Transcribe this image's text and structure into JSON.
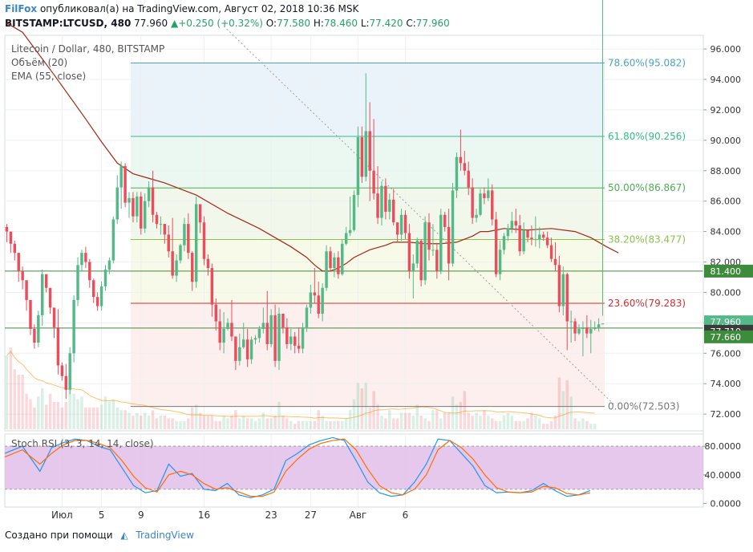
{
  "header": {
    "brand": "FilFox",
    "published_text": "опубликовал(а) на TradingView.com, Август 02, 2018 10:36 MSK",
    "symbol": "BITSTAMP:LTCUSD, 480",
    "last": "77.960",
    "change": "+0.250 (+0.32%)",
    "o_label": "O:",
    "o_value": "77.580",
    "h_label": "H:",
    "h_value": "78.460",
    "l_label": "L:",
    "l_value": "77.420",
    "c_label": "C:",
    "c_value": "77.960"
  },
  "legend": {
    "title": "Litecoin / Dollar, 480, BITSTAMP",
    "volume": "Объём (20)",
    "ema": "EMA (55, close)",
    "stoch": "Stoch RSI (3, 3, 14, 14, close)"
  },
  "footer": {
    "created_with": "Создано при помощи",
    "tradingview": "TradingView"
  },
  "colors": {
    "up": "#53b987",
    "down": "#eb4d5c",
    "ema": "#a52714",
    "hline": "#3c8c3c",
    "stoch_k": "#2196f3",
    "stoch_d": "#ff6d00",
    "stoch_band": "#e1bee7"
  },
  "chart_data": [
    {
      "type": "candlestick",
      "title": "Litecoin / Dollar, 480, BITSTAMP",
      "ylim": [
        70.9,
        96.9
      ],
      "y_ticks": [
        "96.000",
        "94.000",
        "92.000",
        "90.000",
        "88.000",
        "86.000",
        "84.000",
        "82.000",
        "80.000",
        "78.000",
        "76.000",
        "74.000",
        "72.000"
      ],
      "x_ticks": [
        "Июл",
        "5",
        "9",
        "16",
        "23",
        "27",
        "Авг",
        "6"
      ],
      "x_tick_bars": [
        14,
        24,
        34,
        50,
        67,
        77,
        89,
        101
      ],
      "closes": [
        84.0,
        83.2,
        82.6,
        81.4,
        80.8,
        79.5,
        77.6,
        76.7,
        78.5,
        81.2,
        80.3,
        79.0,
        77.7,
        75.2,
        74.5,
        73.6,
        76.0,
        79.5,
        81.8,
        82.6,
        82.0,
        80.8,
        79.7,
        79.1,
        80.4,
        81.5,
        82.1,
        84.8,
        86.9,
        88.3,
        85.9,
        86.2,
        85.0,
        86.3,
        84.2,
        86.0,
        86.9,
        85.1,
        84.5,
        84.5,
        83.8,
        82.7,
        81.1,
        82.1,
        83.1,
        84.5,
        82.6,
        80.7,
        85.8,
        84.6,
        82.2,
        81.6,
        79.2,
        78.1,
        76.7,
        77.6,
        78.0,
        77.1,
        75.5,
        76.4,
        76.9,
        75.6,
        76.9,
        77.0,
        77.6,
        78.0,
        76.6,
        78.5,
        75.5,
        78.6,
        77.7,
        76.6,
        77.1,
        76.5,
        76.3,
        77.7,
        79.0,
        80.0,
        79.8,
        78.6,
        80.3,
        82.7,
        81.6,
        82.3,
        81.2,
        83.2,
        83.9,
        84.1,
        86.4,
        90.2,
        87.6,
        90.6,
        88.0,
        86.5,
        84.9,
        87.0,
        85.3,
        86.1,
        84.6,
        83.8,
        85.1,
        83.9,
        81.4,
        81.9,
        83.4,
        80.8,
        84.6,
        82.8,
        82.8,
        81.4,
        85.1,
        84.3,
        81.9,
        86.7,
        88.9,
        88.5,
        88.0,
        86.9,
        84.9,
        85.1,
        86.5,
        86.2,
        86.7,
        84.8,
        81.2,
        82.8,
        83.7,
        84.2,
        84.7,
        84.4,
        82.7,
        84.1,
        83.6,
        83.5,
        83.5,
        83.8,
        83.6,
        83.1,
        82.2,
        81.8,
        79.1,
        81.2,
        78.1,
        78.1,
        77.3,
        77.6,
        77.7,
        77.3,
        77.6,
        77.7,
        77.9,
        77.96
      ],
      "highs": [
        84.5,
        83.8,
        83.4,
        82.2,
        81.7,
        80.6,
        79.0,
        77.9,
        78.8,
        81.5,
        80.9,
        79.9,
        78.6,
        78.9,
        75.4,
        75.3,
        76.4,
        79.8,
        82.3,
        82.8,
        83.0,
        82.2,
        80.9,
        80.0,
        80.7,
        81.8,
        82.3,
        85.0,
        87.7,
        88.6,
        88.5,
        86.6,
        86.6,
        86.6,
        86.6,
        86.5,
        87.3,
        88.0,
        85.3,
        85.0,
        84.5,
        84.4,
        84.9,
        82.5,
        83.2,
        84.9,
        85.2,
        82.7,
        86.3,
        85.2,
        85.0,
        82.5,
        81.9,
        79.6,
        78.9,
        78.7,
        78.3,
        79.5,
        77.1,
        77.3,
        78.0,
        77.6,
        77.1,
        77.2,
        77.8,
        79.0,
        80.1,
        78.9,
        79.2,
        79.0,
        78.3,
        78.3,
        77.6,
        77.4,
        77.7,
        78.0,
        79.2,
        80.5,
        81.6,
        80.7,
        80.6,
        83.1,
        83.0,
        82.6,
        82.7,
        83.5,
        84.3,
        86.3,
        86.7,
        90.9,
        90.9,
        94.4,
        92.5,
        91.4,
        88.3,
        87.3,
        87.5,
        86.5,
        86.8,
        84.6,
        85.5,
        85.4,
        84.5,
        82.5,
        83.6,
        83.5,
        85.0,
        85.2,
        84.5,
        83.2,
        85.5,
        85.3,
        85.5,
        87.2,
        89.2,
        90.7,
        89.3,
        88.6,
        87.5,
        85.5,
        86.8,
        86.9,
        87.5,
        87.1,
        85.3,
        83.4,
        83.9,
        84.5,
        85.3,
        85.5,
        85.1,
        84.6,
        84.0,
        84.4,
        85.0,
        84.3,
        84.0,
        84.0,
        83.6,
        83.3,
        82.4,
        81.7,
        81.3,
        78.8,
        78.3,
        77.9,
        78.1,
        78.5,
        78.2,
        78.1,
        78.3,
        78.46
      ],
      "lows": [
        83.3,
        82.6,
        82.1,
        80.7,
        80.2,
        78.8,
        77.2,
        76.3,
        76.4,
        77.8,
        80.0,
        78.6,
        77.0,
        74.6,
        74.2,
        73.0,
        73.3,
        75.4,
        79.1,
        81.4,
        81.6,
        80.3,
        79.3,
        78.8,
        78.8,
        80.1,
        81.2,
        81.9,
        84.5,
        85.5,
        85.6,
        84.9,
        84.6,
        84.6,
        83.8,
        83.9,
        85.6,
        84.6,
        84.2,
        83.8,
        83.2,
        82.3,
        80.9,
        80.7,
        81.9,
        82.7,
        82.2,
        80.1,
        80.3,
        83.9,
        81.8,
        81.1,
        78.4,
        77.5,
        76.2,
        76.0,
        77.5,
        76.8,
        74.9,
        75.2,
        76.3,
        75.1,
        75.3,
        76.6,
        76.7,
        77.3,
        76.2,
        76.4,
        75.1,
        74.9,
        77.3,
        76.3,
        76.2,
        76.0,
        76.0,
        76.0,
        77.4,
        78.6,
        79.3,
        78.3,
        78.1,
        80.1,
        81.4,
        81.0,
        80.9,
        81.1,
        83.1,
        83.7,
        84.0,
        85.6,
        87.2,
        87.3,
        86.0,
        86.1,
        84.5,
        84.4,
        84.8,
        84.8,
        84.4,
        83.3,
        83.4,
        83.5,
        80.9,
        79.6,
        81.6,
        80.4,
        80.5,
        82.1,
        82.4,
        80.9,
        81.2,
        84.0,
        80.8,
        81.7,
        86.2,
        88.0,
        87.7,
        86.4,
        84.5,
        84.6,
        85.0,
        85.8,
        86.0,
        84.4,
        81.0,
        80.8,
        82.5,
        83.4,
        83.9,
        83.9,
        82.4,
        82.5,
        83.3,
        83.1,
        83.0,
        82.9,
        83.4,
        82.9,
        82.0,
        81.4,
        78.7,
        78.5,
        76.2,
        76.7,
        76.8,
        77.2,
        75.8,
        77.0,
        76.0,
        77.5,
        77.42
      ],
      "volumes": [
        27,
        30,
        22,
        20,
        20,
        13,
        11,
        8,
        12,
        15,
        9,
        13,
        10,
        10,
        8,
        10,
        15,
        13,
        11,
        12,
        8,
        8,
        8,
        8,
        9,
        12,
        10,
        11,
        8,
        7,
        7,
        6,
        5,
        6,
        5,
        6,
        5,
        7,
        4,
        5,
        5,
        4,
        4,
        3,
        3,
        3,
        4,
        8,
        9,
        6,
        5,
        5,
        5,
        3,
        3,
        5,
        4,
        5,
        7,
        4,
        5,
        4,
        4,
        3,
        4,
        6,
        4,
        4,
        5,
        10,
        5,
        4,
        3,
        2,
        3,
        3,
        3,
        3,
        3,
        7,
        5,
        3,
        3,
        3,
        3,
        3,
        4,
        7,
        11,
        17,
        15,
        17,
        8,
        14,
        9,
        5,
        4,
        7,
        4,
        4,
        6,
        6,
        6,
        5,
        9,
        5,
        4,
        3,
        7,
        7,
        4,
        6,
        6,
        12,
        9,
        10,
        14,
        6,
        5,
        6,
        5,
        7,
        5,
        4,
        3,
        3,
        5,
        6,
        5,
        3,
        3,
        3,
        4,
        6,
        5,
        4,
        2,
        2,
        3,
        5,
        19,
        14,
        18,
        12,
        4,
        3,
        4,
        3,
        2,
        2
      ],
      "ema": [
        [
          0,
          97.7
        ],
        [
          4,
          97.1
        ],
        [
          12,
          94.3
        ],
        [
          20,
          91.4
        ],
        [
          24,
          89.9
        ],
        [
          28,
          88.5
        ],
        [
          32,
          87.8
        ],
        [
          36,
          87.5
        ],
        [
          40,
          87.2
        ],
        [
          44,
          86.8
        ],
        [
          48,
          86.4
        ],
        [
          52,
          85.8
        ],
        [
          56,
          85.2
        ],
        [
          60,
          84.7
        ],
        [
          64,
          84.2
        ],
        [
          68,
          83.6
        ],
        [
          72,
          83.0
        ],
        [
          76,
          82.3
        ],
        [
          78,
          81.8
        ],
        [
          80,
          81.4
        ],
        [
          82,
          81.4
        ],
        [
          84,
          81.6
        ],
        [
          86,
          81.9
        ],
        [
          88,
          82.3
        ],
        [
          92,
          82.8
        ],
        [
          96,
          83.1
        ],
        [
          98,
          83.3
        ],
        [
          102,
          83.3
        ],
        [
          106,
          83.2
        ],
        [
          110,
          83.2
        ],
        [
          114,
          83.3
        ],
        [
          118,
          83.7
        ],
        [
          120,
          84.0
        ],
        [
          122,
          84.0
        ],
        [
          126,
          84.2
        ],
        [
          132,
          84.1
        ],
        [
          138,
          84.2
        ],
        [
          144,
          84.0
        ],
        [
          148,
          83.6
        ],
        [
          152,
          83.0
        ],
        [
          155,
          82.6
        ]
      ],
      "levels": [
        {
          "label": "78.60%(95.082)",
          "value": 95.082,
          "color": "#4aa3c6"
        },
        {
          "label": "61.80%(90.256)",
          "value": 90.256,
          "color": "#2fbf86"
        },
        {
          "label": "50.00%(86.867)",
          "value": 86.867,
          "color": "#4caf50"
        },
        {
          "label": "38.20%(83.477)",
          "value": 83.477,
          "color": "#8bc34a"
        },
        {
          "label": "23.60%(79.283)",
          "value": 79.283,
          "color": "#d32f2f"
        },
        {
          "label": "0.00%(72.503)",
          "value": 72.503,
          "color": "#777777"
        }
      ],
      "horizontal_lines": [
        {
          "value": 81.4,
          "label": "81.400"
        },
        {
          "value": 77.66,
          "label": "77.660"
        }
      ],
      "price_labels": [
        {
          "value": 77.96,
          "label": "77.960",
          "color": "#53b987"
        },
        {
          "value": 77.71,
          "label": "77.710",
          "color": "#3a3a3a"
        }
      ],
      "trendline": [
        [
          55,
          97.5
        ],
        [
          154,
          72.6
        ]
      ]
    },
    {
      "type": "line",
      "title": "Stoch RSI (3, 3, 14, 14, close)",
      "ylim": [
        -5,
        97
      ],
      "y_ticks": [
        "80.0000",
        "40.0000",
        "0.0000"
      ],
      "band": [
        20,
        80
      ],
      "series": [
        {
          "key": "k",
          "points": [
            [
              0,
              70
            ],
            [
              6,
              80
            ],
            [
              12,
              45
            ],
            [
              16,
              78
            ],
            [
              20,
              85
            ],
            [
              24,
              90
            ],
            [
              28,
              88
            ],
            [
              32,
              80
            ],
            [
              36,
              75
            ],
            [
              40,
              50
            ],
            [
              44,
              25
            ],
            [
              48,
              15
            ],
            [
              52,
              18
            ],
            [
              56,
              55
            ],
            [
              60,
              38
            ],
            [
              64,
              42
            ],
            [
              68,
              20
            ],
            [
              72,
              18
            ],
            [
              76,
              28
            ],
            [
              80,
              12
            ],
            [
              84,
              8
            ],
            [
              88,
              12
            ],
            [
              92,
              20
            ],
            [
              96,
              60
            ],
            [
              100,
              70
            ],
            [
              104,
              82
            ],
            [
              108,
              88
            ],
            [
              112,
              92
            ],
            [
              116,
              88
            ],
            [
              120,
              60
            ],
            [
              124,
              30
            ],
            [
              128,
              15
            ],
            [
              132,
              10
            ],
            [
              136,
              12
            ],
            [
              140,
              30
            ],
            [
              144,
              55
            ],
            [
              148,
              90
            ],
            [
              152,
              88
            ],
            [
              156,
              70
            ],
            [
              160,
              52
            ],
            [
              164,
              25
            ],
            [
              168,
              15
            ],
            [
              172,
              16
            ],
            [
              176,
              15
            ],
            [
              180,
              18
            ],
            [
              184,
              28
            ],
            [
              188,
              18
            ],
            [
              192,
              10
            ],
            [
              196,
              12
            ],
            [
              200,
              18
            ]
          ]
        },
        {
          "key": "d",
          "points": [
            [
              0,
              65
            ],
            [
              6,
              75
            ],
            [
              12,
              55
            ],
            [
              16,
              70
            ],
            [
              20,
              82
            ],
            [
              24,
              88
            ],
            [
              28,
              88
            ],
            [
              32,
              84
            ],
            [
              36,
              78
            ],
            [
              40,
              60
            ],
            [
              44,
              38
            ],
            [
              48,
              22
            ],
            [
              52,
              16
            ],
            [
              56,
              40
            ],
            [
              60,
              45
            ],
            [
              64,
              40
            ],
            [
              68,
              28
            ],
            [
              72,
              20
            ],
            [
              76,
              22
            ],
            [
              80,
              16
            ],
            [
              84,
              10
            ],
            [
              88,
              10
            ],
            [
              92,
              16
            ],
            [
              96,
              45
            ],
            [
              100,
              62
            ],
            [
              104,
              76
            ],
            [
              108,
              84
            ],
            [
              112,
              88
            ],
            [
              116,
              90
            ],
            [
              120,
              75
            ],
            [
              124,
              48
            ],
            [
              128,
              25
            ],
            [
              132,
              15
            ],
            [
              136,
              12
            ],
            [
              140,
              20
            ],
            [
              144,
              40
            ],
            [
              148,
              75
            ],
            [
              152,
              88
            ],
            [
              156,
              78
            ],
            [
              160,
              62
            ],
            [
              164,
              40
            ],
            [
              168,
              22
            ],
            [
              172,
              16
            ],
            [
              176,
              15
            ],
            [
              180,
              16
            ],
            [
              184,
              24
            ],
            [
              188,
              22
            ],
            [
              192,
              14
            ],
            [
              196,
              12
            ],
            [
              200,
              15
            ]
          ]
        }
      ]
    }
  ]
}
